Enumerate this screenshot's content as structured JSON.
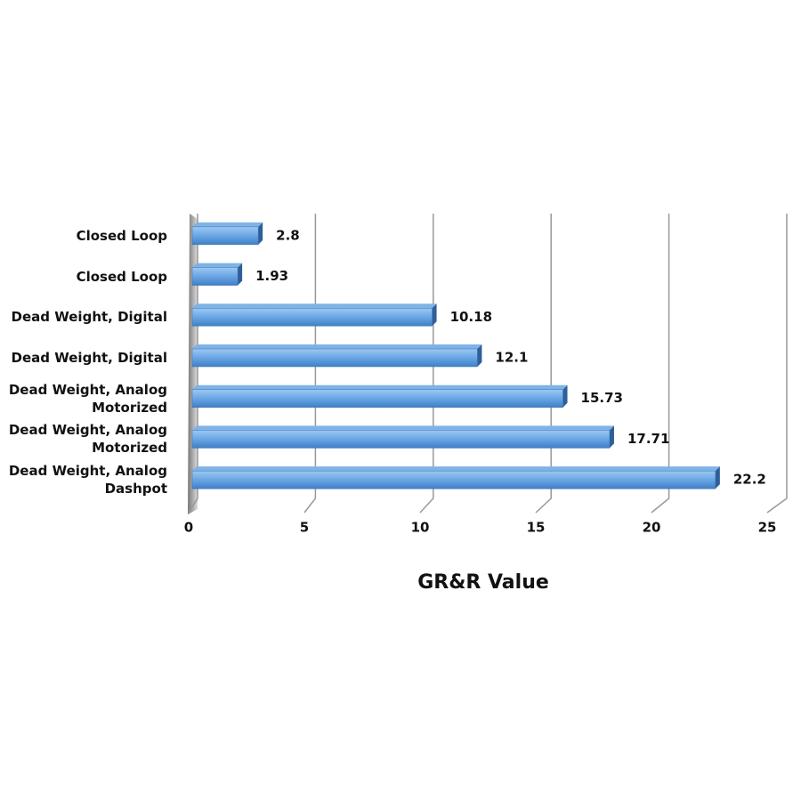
{
  "chart_data": {
    "type": "bar",
    "orientation": "horizontal",
    "categories": [
      "Closed Loop",
      "Closed Loop",
      "Dead Weight, Digital",
      "Dead Weight, Digital",
      "Dead Weight, Analog Motorized",
      "Dead Weight, Analog Motorized",
      "Dead Weight, Analog Dashpot"
    ],
    "values": [
      2.8,
      1.93,
      10.18,
      12.1,
      15.73,
      17.71,
      22.2
    ],
    "color": "#5b9bd5",
    "xlim": [
      0,
      25
    ],
    "xticks": [
      0,
      5,
      10,
      15,
      20,
      25
    ],
    "x_label": "GR&R Value",
    "grid": true
  }
}
